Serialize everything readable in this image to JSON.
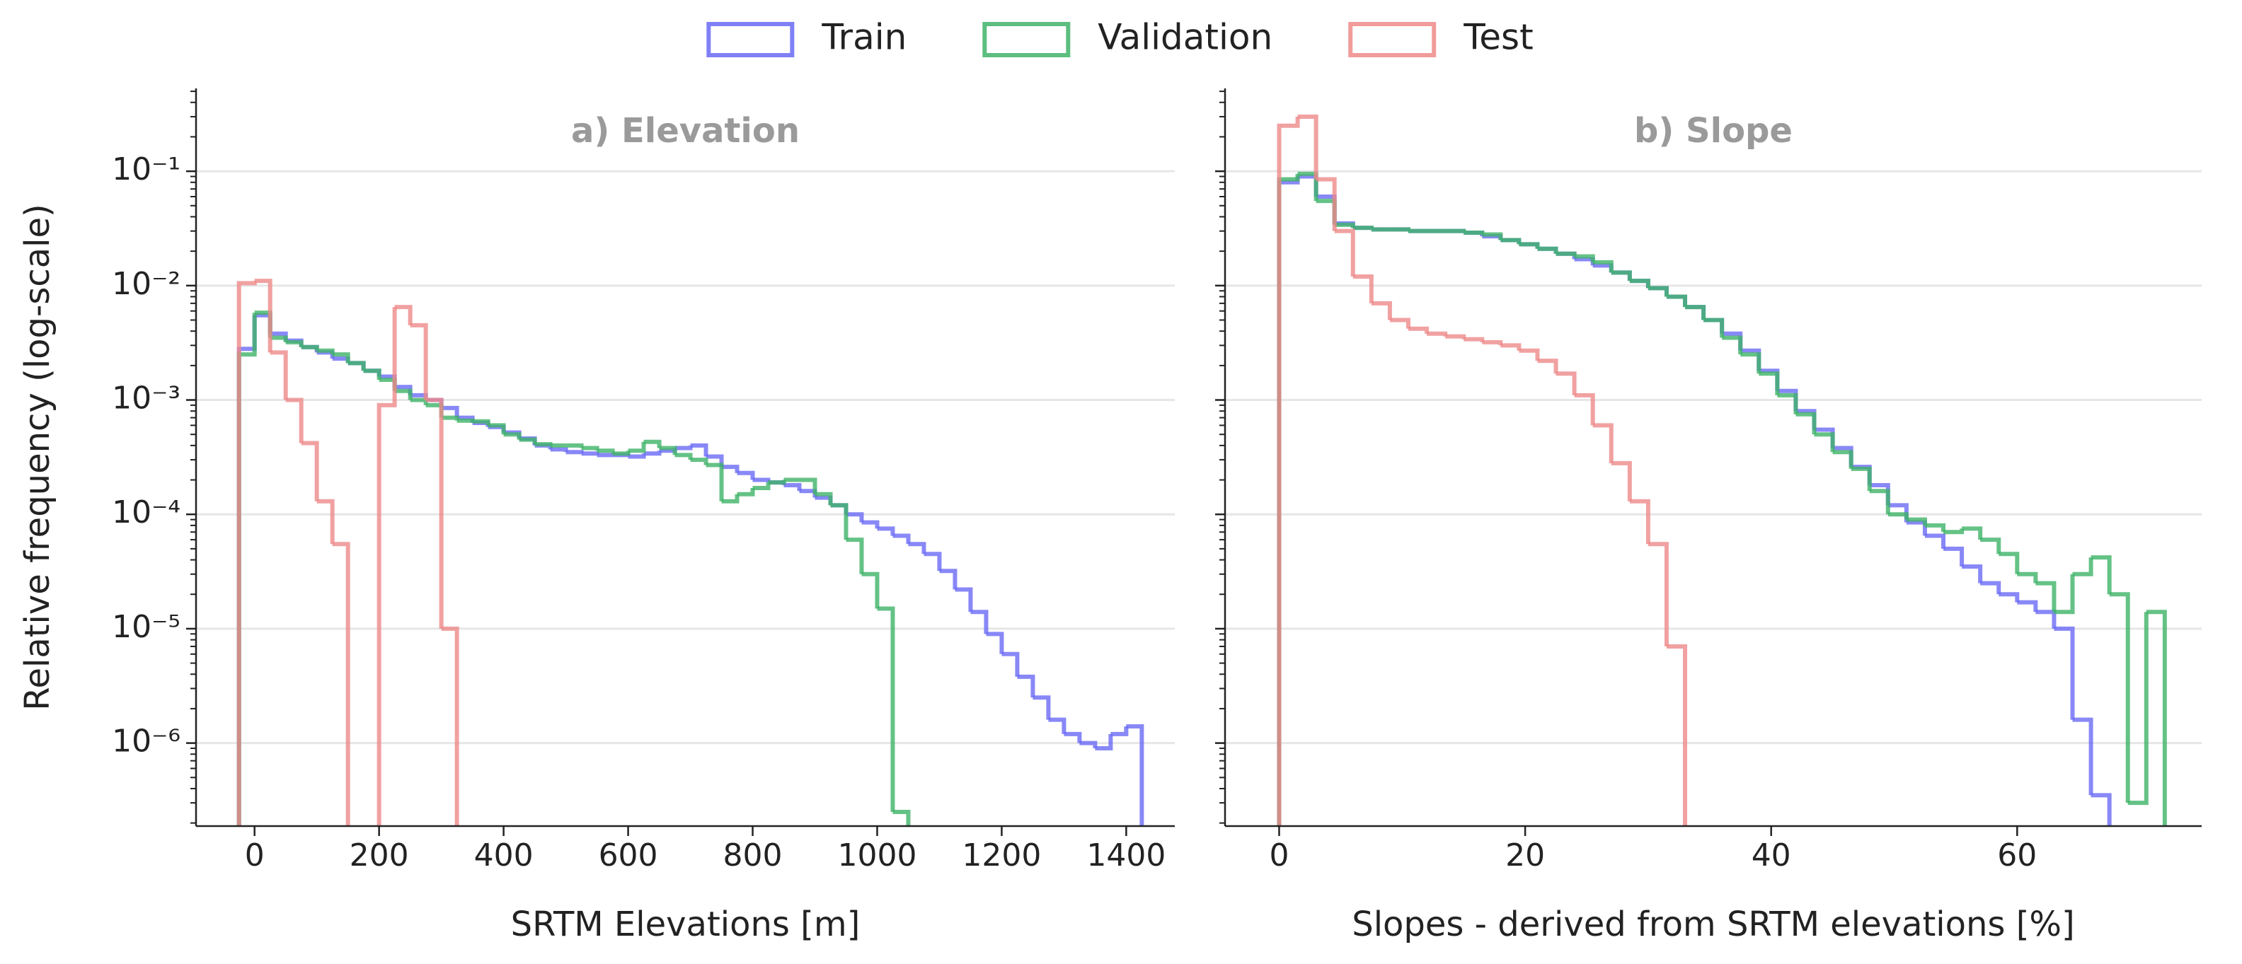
{
  "legend": "upper center",
  "chart_data": [
    {
      "type": "histogram",
      "title": "a) Elevation",
      "xlabel": "SRTM Elevations [m]",
      "ylabel": "Relative frequency (log-scale)",
      "log_y": true,
      "grid": true,
      "xlim": [
        -94,
        1478
      ],
      "xticks": [
        0,
        200,
        400,
        600,
        800,
        1000,
        1200,
        1400
      ],
      "ylim": [
        1.88e-07,
        0.53
      ],
      "yticks": [
        {
          "value": 1e-06,
          "label": "10⁻⁶"
        },
        {
          "value": 1e-05,
          "label": "10⁻⁵"
        },
        {
          "value": 0.0001,
          "label": "10⁻⁴"
        },
        {
          "value": 0.001,
          "label": "10⁻³"
        },
        {
          "value": 0.01,
          "label": "10⁻²"
        },
        {
          "value": 0.1,
          "label": "10⁻¹"
        }
      ],
      "series": [
        {
          "name": "Train",
          "color": "#6a6af5",
          "bins": [
            -25,
            0,
            25,
            50,
            75,
            100,
            125,
            150,
            175,
            200,
            225,
            250,
            275,
            300,
            325,
            350,
            375,
            400,
            425,
            450,
            475,
            500,
            525,
            550,
            575,
            600,
            625,
            650,
            675,
            700,
            725,
            750,
            775,
            800,
            825,
            850,
            875,
            900,
            925,
            950,
            975,
            1000,
            1025,
            1050,
            1075,
            1100,
            1125,
            1150,
            1175,
            1200,
            1225,
            1250,
            1275,
            1300,
            1325,
            1350,
            1375,
            1400,
            1425
          ],
          "values": [
            0.0028,
            0.0055,
            0.0038,
            0.0033,
            0.0029,
            0.0026,
            0.0023,
            0.0021,
            0.0018,
            0.0016,
            0.0013,
            0.0011,
            0.001,
            0.00085,
            0.0007,
            0.00063,
            0.00058,
            0.00052,
            0.00046,
            0.0004,
            0.00037,
            0.00035,
            0.00034,
            0.00033,
            0.00033,
            0.00032,
            0.00034,
            0.00036,
            0.00038,
            0.0004,
            0.00032,
            0.00026,
            0.00023,
            0.0002,
            0.00019,
            0.00018,
            0.00016,
            0.00014,
            0.00012,
            0.0001,
            8.5e-05,
            7.5e-05,
            6.5e-05,
            5.5e-05,
            4.5e-05,
            3.2e-05,
            2.2e-05,
            1.4e-05,
            9e-06,
            6e-06,
            3.8e-06,
            2.5e-06,
            1.6e-06,
            1.2e-06,
            1e-06,
            9e-07,
            1.2e-06,
            1.4e-06
          ]
        },
        {
          "name": "Validation",
          "color": "#3fb368",
          "bins": [
            -25,
            0,
            25,
            50,
            75,
            100,
            125,
            150,
            175,
            200,
            225,
            250,
            275,
            300,
            325,
            350,
            375,
            400,
            425,
            450,
            475,
            500,
            525,
            550,
            575,
            600,
            625,
            650,
            675,
            700,
            725,
            750,
            775,
            800,
            825,
            850,
            875,
            900,
            925,
            950,
            975,
            1000,
            1025,
            1050
          ],
          "values": [
            0.0025,
            0.0058,
            0.0035,
            0.0032,
            0.0029,
            0.0027,
            0.0025,
            0.0021,
            0.0018,
            0.0015,
            0.0012,
            0.001,
            0.0009,
            0.0007,
            0.00066,
            0.00065,
            0.0006,
            0.0005,
            0.00045,
            0.00041,
            0.0004,
            0.0004,
            0.00038,
            0.00036,
            0.00034,
            0.00036,
            0.00043,
            0.00038,
            0.00033,
            0.0003,
            0.00027,
            0.00013,
            0.00015,
            0.00017,
            0.00019,
            0.0002,
            0.0002,
            0.00015,
            0.00012,
            6e-05,
            3e-05,
            1.5e-05,
            2.5e-07
          ]
        },
        {
          "name": "Test",
          "color": "#ee8a8a",
          "bins": [
            -25,
            0,
            25,
            50,
            75,
            100,
            125,
            150,
            175,
            200,
            225,
            250,
            275,
            300,
            325
          ],
          "values": [
            0.0105,
            0.011,
            0.0026,
            0.001,
            0.00042,
            0.00013,
            5.5e-05,
            null,
            null,
            0.0009,
            0.0065,
            0.0045,
            0.001,
            1e-05
          ]
        }
      ]
    },
    {
      "type": "histogram",
      "title": "b) Slope",
      "xlabel": "Slopes - derived from SRTM elevations [%]",
      "log_y": true,
      "grid": true,
      "sharey": true,
      "xlim": [
        -4.4,
        75
      ],
      "xticks": [
        0,
        20,
        40,
        60
      ],
      "series": [
        {
          "color": "#6a6af5",
          "bins": [
            0,
            1.5,
            3,
            4.5,
            6,
            7.5,
            9,
            10.5,
            12,
            13.5,
            15,
            16.5,
            18,
            19.5,
            21,
            22.5,
            24,
            25.5,
            27,
            28.5,
            30,
            31.5,
            33,
            34.5,
            36,
            37.5,
            39,
            40.5,
            42,
            43.5,
            45,
            46.5,
            48,
            49.5,
            51,
            52.5,
            54,
            55.5,
            57,
            58.5,
            60,
            61.5,
            63,
            64.5,
            66,
            67.5
          ],
          "values": [
            0.08,
            0.09,
            0.06,
            0.035,
            0.032,
            0.031,
            0.031,
            0.03,
            0.03,
            0.03,
            0.029,
            0.027,
            0.025,
            0.023,
            0.021,
            0.019,
            0.017,
            0.015,
            0.013,
            0.011,
            0.0095,
            0.008,
            0.0065,
            0.005,
            0.0038,
            0.0027,
            0.0018,
            0.0012,
            0.0008,
            0.00055,
            0.00038,
            0.00026,
            0.00018,
            0.00012,
            8.5e-05,
            6.5e-05,
            5e-05,
            3.5e-05,
            2.5e-05,
            2e-05,
            1.7e-05,
            1.4e-05,
            1e-05,
            1.6e-06,
            3.5e-07
          ]
        },
        {
          "color": "#3fb368",
          "bins": [
            0,
            1.5,
            3,
            4.5,
            6,
            7.5,
            9,
            10.5,
            12,
            13.5,
            15,
            16.5,
            18,
            19.5,
            21,
            22.5,
            24,
            25.5,
            27,
            28.5,
            30,
            31.5,
            33,
            34.5,
            36,
            37.5,
            39,
            40.5,
            42,
            43.5,
            45,
            46.5,
            48,
            49.5,
            51,
            52.5,
            54,
            55.5,
            57,
            58.5,
            60,
            61.5,
            63,
            64.5,
            66,
            67.5,
            69,
            70.5,
            72
          ],
          "values": [
            0.085,
            0.095,
            0.055,
            0.034,
            0.032,
            0.031,
            0.031,
            0.03,
            0.03,
            0.03,
            0.029,
            0.028,
            0.025,
            0.023,
            0.021,
            0.019,
            0.018,
            0.016,
            0.013,
            0.011,
            0.0095,
            0.008,
            0.0065,
            0.005,
            0.0035,
            0.0025,
            0.0017,
            0.0011,
            0.00075,
            0.0005,
            0.00035,
            0.00025,
            0.00016,
            0.0001,
            9e-05,
            8e-05,
            7e-05,
            7.5e-05,
            6e-05,
            4.5e-05,
            3e-05,
            2.5e-05,
            1.4e-05,
            3e-05,
            4.2e-05,
            2e-05,
            3e-07,
            1.4e-05
          ]
        },
        {
          "color": "#ee8a8a",
          "bins": [
            0,
            1.5,
            3,
            4.5,
            6,
            7.5,
            9,
            10.5,
            12,
            13.5,
            15,
            16.5,
            18,
            19.5,
            21,
            22.5,
            24,
            25.5,
            27,
            28.5,
            30,
            31.5,
            33
          ],
          "values": [
            0.25,
            0.3,
            0.085,
            0.03,
            0.012,
            0.007,
            0.005,
            0.0042,
            0.0038,
            0.0036,
            0.0034,
            0.0032,
            0.003,
            0.0027,
            0.0022,
            0.0017,
            0.0011,
            0.0006,
            0.00028,
            0.00013,
            5.5e-05,
            7e-06
          ]
        }
      ]
    }
  ]
}
